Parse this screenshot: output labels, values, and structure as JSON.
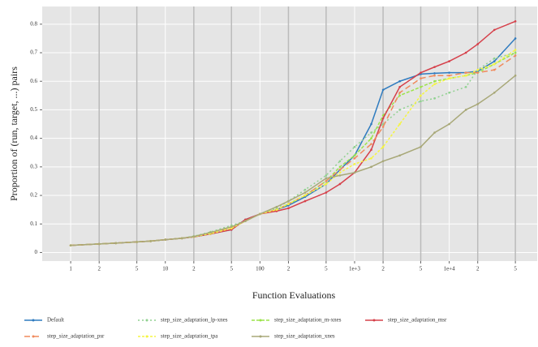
{
  "chart_data": {
    "type": "line",
    "x_label": "Function Evaluations",
    "y_label": "Proportion of (run, target, ...) pairs",
    "x_scale": "log",
    "grid": true,
    "legend_position": "bottom",
    "xlim": [
      0.5,
      85000
    ],
    "ylim": [
      -0.03,
      0.862
    ],
    "xticks": [
      1,
      2,
      5,
      10,
      {
        "value": 20,
        "label": "2"
      },
      {
        "value": 50,
        "label": "5"
      },
      100,
      {
        "value": 200,
        "label": "2"
      },
      {
        "value": 500,
        "label": "5"
      },
      {
        "value": 1000,
        "label": "1e+3"
      },
      {
        "value": 2000,
        "label": "2"
      },
      {
        "value": 5000,
        "label": "5"
      },
      {
        "value": 10000,
        "label": "1e+4"
      },
      {
        "value": 20000,
        "label": "2"
      },
      {
        "value": 50000,
        "label": "5"
      }
    ],
    "yticks": [
      0,
      0.1,
      0.2,
      0.3,
      0.4,
      0.5,
      0.6,
      0.7,
      0.8
    ],
    "x": [
      1,
      2,
      3,
      5,
      7,
      10,
      15,
      20,
      30,
      50,
      70,
      100,
      150,
      200,
      300,
      500,
      700,
      1000,
      1500,
      2000,
      3000,
      5000,
      7000,
      10000,
      15000,
      20000,
      30000,
      50000
    ],
    "series": [
      {
        "name": "Default",
        "color": "#2f7bbf",
        "dash": "none",
        "values": [
          0.025,
          0.03,
          0.033,
          0.037,
          0.04,
          0.045,
          0.05,
          0.055,
          0.065,
          0.08,
          0.115,
          0.135,
          0.15,
          0.165,
          0.195,
          0.24,
          0.29,
          0.34,
          0.45,
          0.57,
          0.6,
          0.625,
          0.628,
          0.63,
          0.63,
          0.635,
          0.67,
          0.75
        ]
      },
      {
        "name": "step_size_adaptation_lp-xnes",
        "color": "#8fd18f",
        "dash": "2,3",
        "values": [
          0.025,
          0.03,
          0.033,
          0.037,
          0.04,
          0.045,
          0.05,
          0.057,
          0.072,
          0.095,
          0.11,
          0.135,
          0.155,
          0.18,
          0.22,
          0.27,
          0.32,
          0.37,
          0.42,
          0.45,
          0.5,
          0.53,
          0.54,
          0.56,
          0.58,
          0.64,
          0.68,
          0.7
        ]
      },
      {
        "name": "step_size_adaptation_m-xnes",
        "color": "#9be34a",
        "dash": "4,2",
        "values": [
          0.025,
          0.03,
          0.033,
          0.037,
          0.04,
          0.045,
          0.05,
          0.056,
          0.07,
          0.09,
          0.11,
          0.135,
          0.15,
          0.17,
          0.2,
          0.25,
          0.3,
          0.34,
          0.4,
          0.48,
          0.55,
          0.58,
          0.6,
          0.61,
          0.62,
          0.63,
          0.66,
          0.7
        ]
      },
      {
        "name": "step_size_adaptation_msr",
        "color": "#d6404a",
        "dash": "none",
        "values": [
          0.025,
          0.03,
          0.033,
          0.037,
          0.04,
          0.045,
          0.05,
          0.055,
          0.065,
          0.08,
          0.115,
          0.135,
          0.145,
          0.155,
          0.18,
          0.21,
          0.24,
          0.28,
          0.36,
          0.47,
          0.58,
          0.63,
          0.65,
          0.67,
          0.7,
          0.73,
          0.78,
          0.81
        ]
      },
      {
        "name": "step_size_adaptation_psr",
        "color": "#f08a5d",
        "dash": "7,4",
        "values": [
          0.025,
          0.03,
          0.033,
          0.037,
          0.04,
          0.045,
          0.05,
          0.055,
          0.068,
          0.085,
          0.11,
          0.135,
          0.15,
          0.17,
          0.2,
          0.25,
          0.29,
          0.33,
          0.38,
          0.44,
          0.56,
          0.61,
          0.62,
          0.62,
          0.63,
          0.63,
          0.64,
          0.69
        ]
      },
      {
        "name": "step_size_adaptation_tpa",
        "color": "#f5f542",
        "dash": "3,2",
        "values": [
          0.025,
          0.03,
          0.033,
          0.037,
          0.04,
          0.045,
          0.05,
          0.055,
          0.066,
          0.085,
          0.11,
          0.135,
          0.15,
          0.17,
          0.2,
          0.24,
          0.28,
          0.31,
          0.33,
          0.37,
          0.45,
          0.55,
          0.59,
          0.61,
          0.62,
          0.64,
          0.66,
          0.71
        ]
      },
      {
        "name": "step_size_adaptation_xnes",
        "color": "#a8a878",
        "dash": "none",
        "values": [
          0.025,
          0.03,
          0.033,
          0.037,
          0.04,
          0.045,
          0.05,
          0.056,
          0.07,
          0.09,
          0.11,
          0.135,
          0.16,
          0.18,
          0.21,
          0.26,
          0.27,
          0.28,
          0.3,
          0.32,
          0.34,
          0.37,
          0.42,
          0.45,
          0.5,
          0.52,
          0.56,
          0.62
        ]
      }
    ]
  }
}
